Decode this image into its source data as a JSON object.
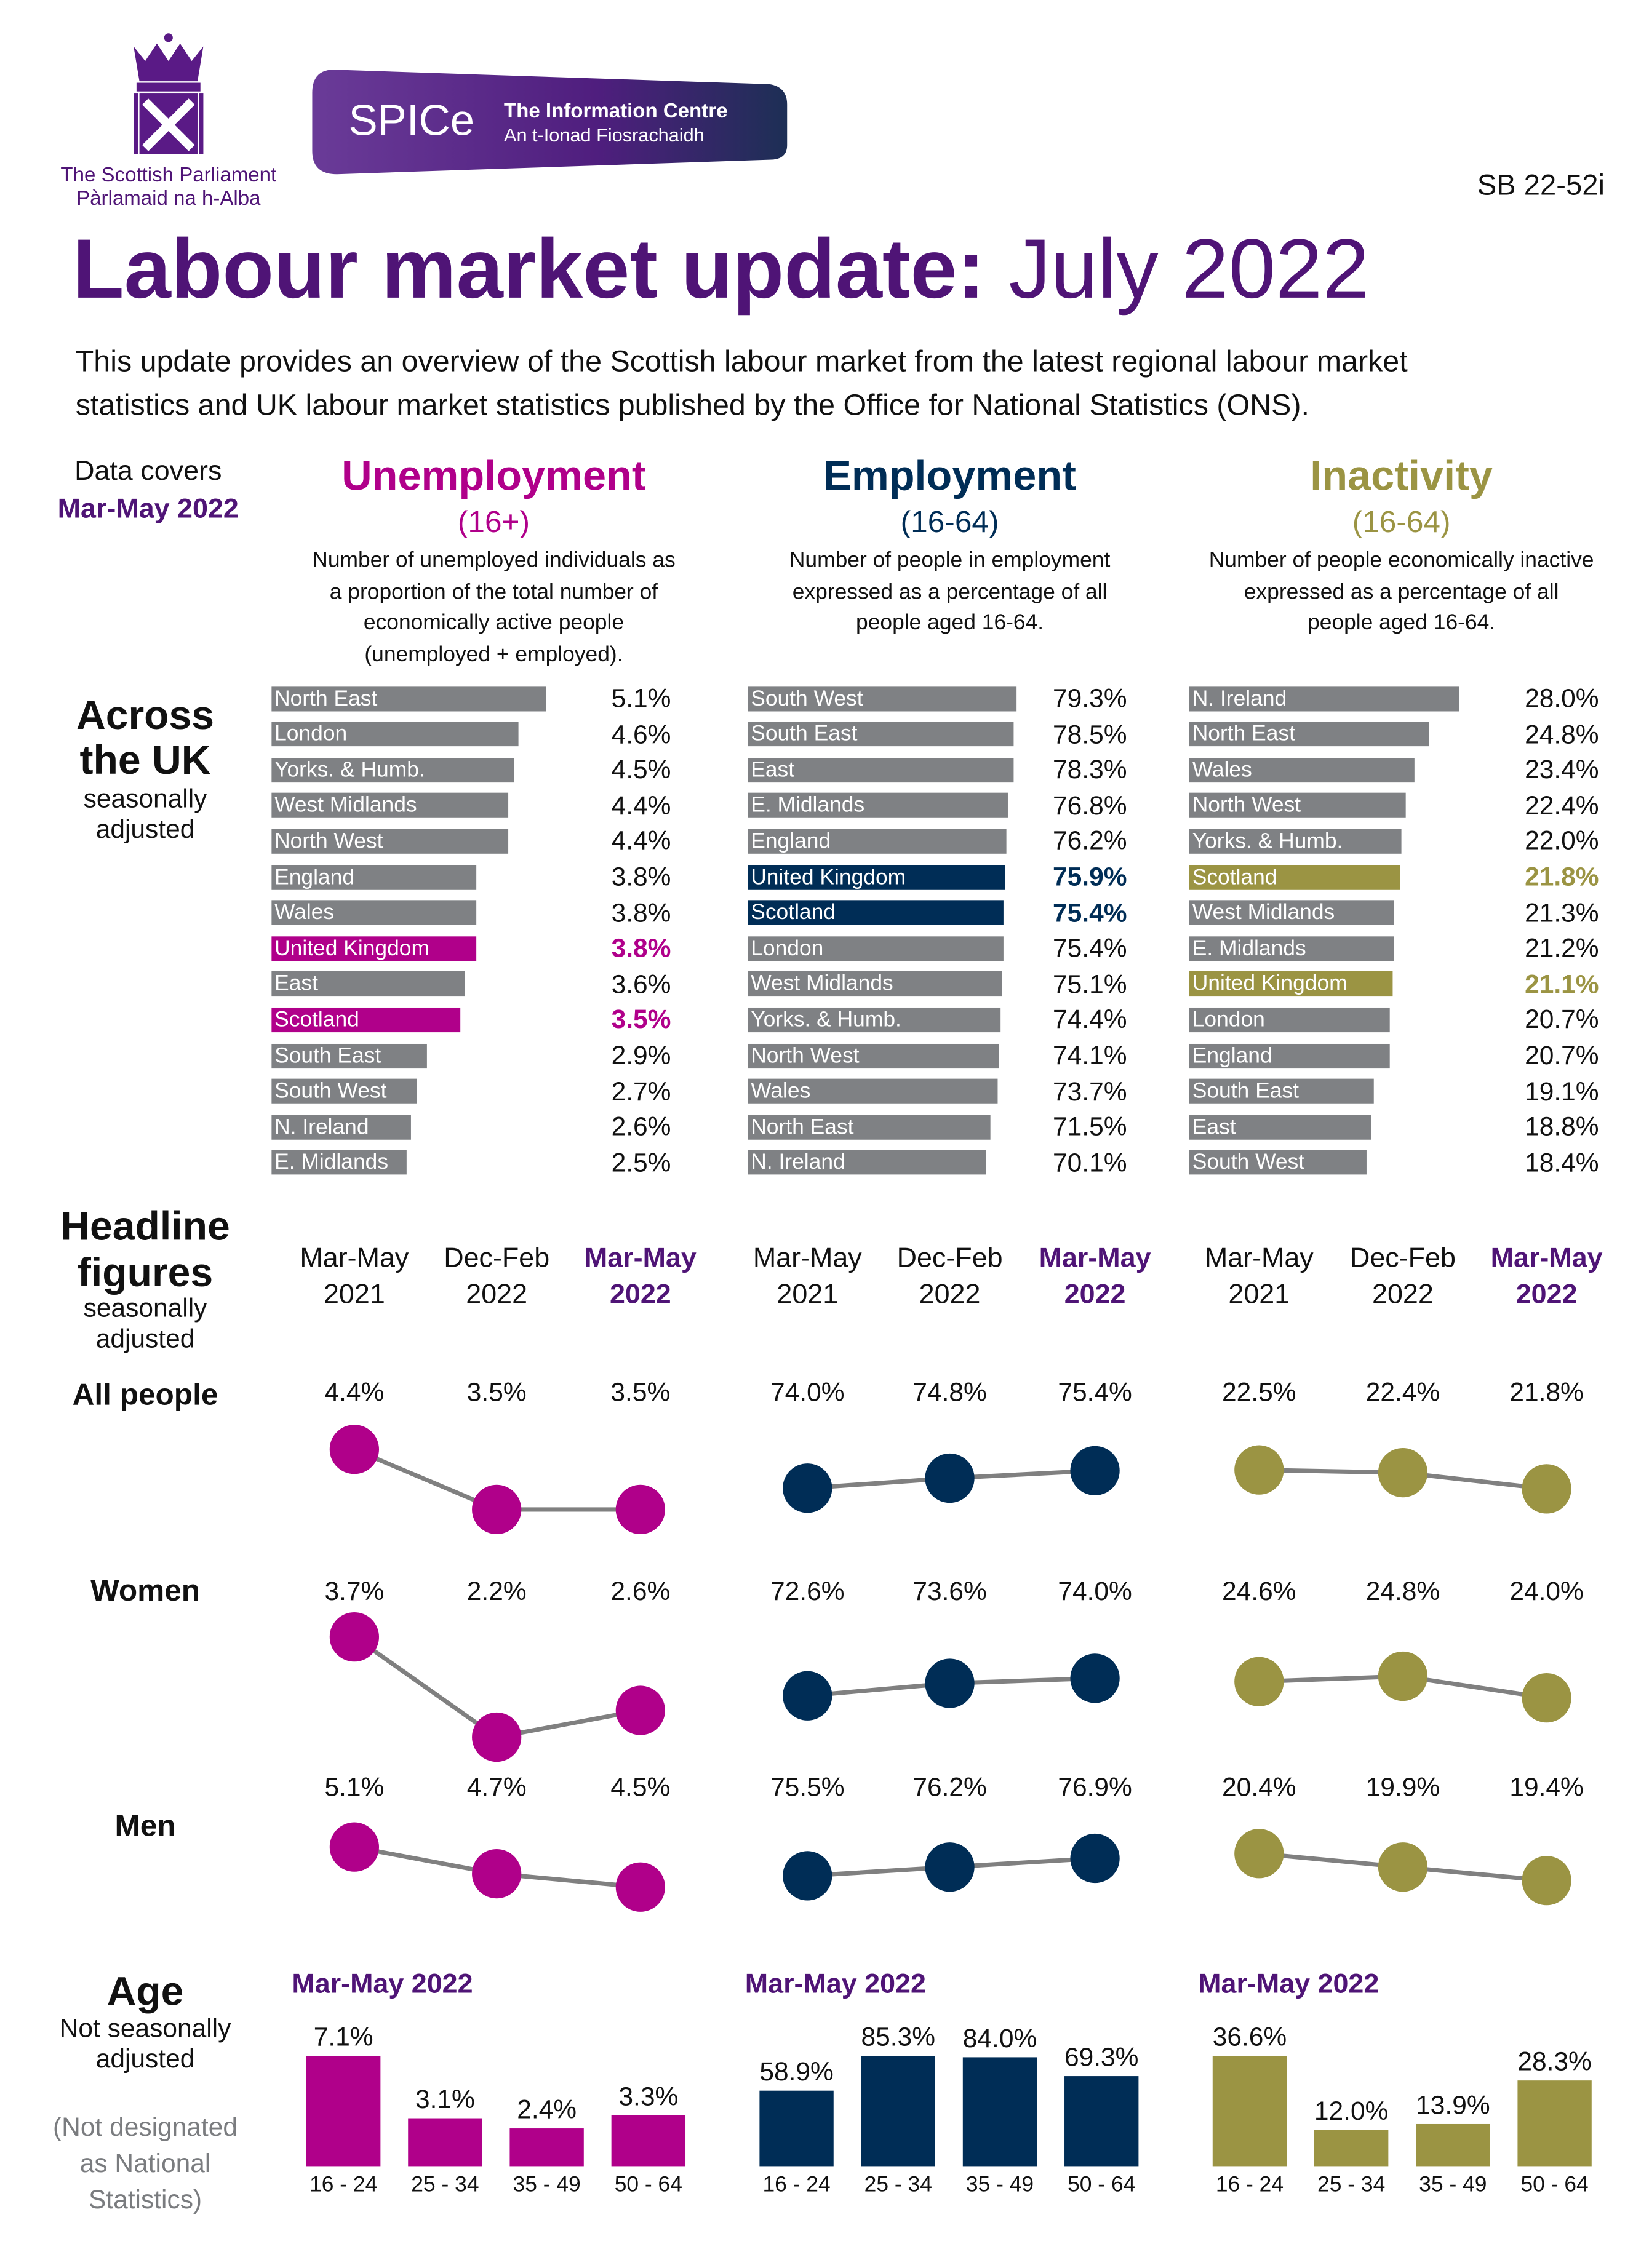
{
  "header": {
    "parliament_name_en": "The Scottish Parliament",
    "parliament_name_gd": "Pàrlamaid na h-Alba",
    "spice_logo": "SPICe",
    "spice_subtitle_en": "The Information Centre",
    "spice_subtitle_gd": "An t-Ionad Fiosrachaidh",
    "reference": "SB 22-52i",
    "title_bold": "Labour market update:",
    "title_regular": "July 2022",
    "intro_line1": "This update provides an overview of the Scottish labour market from the latest regional labour market",
    "intro_line2": "statistics and UK labour market statistics published by the Office for National Statistics (ONS)."
  },
  "data_covers": {
    "label": "Data covers",
    "period": "Mar-May 2022"
  },
  "sections": {
    "across_uk": {
      "title_line1": "Across",
      "title_line2": "the UK",
      "note_line1": "seasonally",
      "note_line2": "adjusted"
    },
    "headline": {
      "title_line1": "Headline",
      "title_line2": "figures",
      "note_line1": "seasonally",
      "note_line2": "adjusted",
      "row_labels": [
        "All people",
        "Women",
        "Men"
      ],
      "periods": [
        {
          "line1": "Mar-May",
          "line2": "2021"
        },
        {
          "line1": "Dec-Feb",
          "line2": "2022"
        },
        {
          "line1": "Mar-May",
          "line2": "2022"
        }
      ]
    },
    "age": {
      "title": "Age",
      "note_line1": "Not seasonally",
      "note_line2": "adjusted",
      "caveat_line1": "(Not designated",
      "caveat_line2": "as National",
      "caveat_line3": "Statistics)"
    }
  },
  "colors": {
    "unemployment": "#b0008a",
    "employment": "#002d56",
    "inactivity": "#9b9443",
    "neutral_bar": "#7f8184",
    "title_purple": "#4f1476",
    "connector": "#808080"
  },
  "measures": [
    {
      "key": "unemployment",
      "title": "Unemployment",
      "age_range": "(16+)",
      "description": [
        "Number of unemployed individuals as",
        "a proportion of the total number of",
        "economically active people",
        "(unemployed + employed)."
      ],
      "regions": [
        {
          "name": "North East",
          "value": "5.1%"
        },
        {
          "name": "London",
          "value": "4.6%"
        },
        {
          "name": "Yorks. & Humb.",
          "value": "4.5%"
        },
        {
          "name": "West Midlands",
          "value": "4.4%"
        },
        {
          "name": "North West",
          "value": "4.4%"
        },
        {
          "name": "England",
          "value": "3.8%"
        },
        {
          "name": "Wales",
          "value": "3.8%"
        },
        {
          "name": "United Kingdom",
          "value": "3.8%",
          "highlight": true
        },
        {
          "name": "East",
          "value": "3.6%"
        },
        {
          "name": "Scotland",
          "value": "3.5%",
          "highlight": true
        },
        {
          "name": "South East",
          "value": "2.9%"
        },
        {
          "name": "South West",
          "value": "2.7%"
        },
        {
          "name": "N. Ireland",
          "value": "2.6%"
        },
        {
          "name": "E. Midlands",
          "value": "2.5%"
        }
      ],
      "headline": {
        "all_people": [
          "4.4%",
          "3.5%",
          "3.5%"
        ],
        "women": [
          "3.7%",
          "2.2%",
          "2.6%"
        ],
        "men": [
          "5.1%",
          "4.7%",
          "4.5%"
        ]
      },
      "age": {
        "period": "Mar-May 2022",
        "groups": [
          "16 - 24",
          "25 - 34",
          "35 - 49",
          "50 - 64"
        ],
        "values": [
          "7.1%",
          "3.1%",
          "2.4%",
          "3.3%"
        ]
      }
    },
    {
      "key": "employment",
      "title": "Employment",
      "age_range": "(16-64)",
      "description": [
        "Number of people in employment",
        "expressed as a percentage of all",
        "people aged 16-64."
      ],
      "regions": [
        {
          "name": "South West",
          "value": "79.3%"
        },
        {
          "name": "South East",
          "value": "78.5%"
        },
        {
          "name": "East",
          "value": "78.3%"
        },
        {
          "name": "E. Midlands",
          "value": "76.8%"
        },
        {
          "name": "England",
          "value": "76.2%"
        },
        {
          "name": "United Kingdom",
          "value": "75.9%",
          "highlight": true
        },
        {
          "name": "Scotland",
          "value": "75.4%",
          "highlight": true
        },
        {
          "name": "London",
          "value": "75.4%"
        },
        {
          "name": "West Midlands",
          "value": "75.1%"
        },
        {
          "name": "Yorks. & Humb.",
          "value": "74.4%"
        },
        {
          "name": "North West",
          "value": "74.1%"
        },
        {
          "name": "Wales",
          "value": "73.7%"
        },
        {
          "name": "North East",
          "value": "71.5%"
        },
        {
          "name": "N. Ireland",
          "value": "70.1%"
        }
      ],
      "headline": {
        "all_people": [
          "74.0%",
          "74.8%",
          "75.4%"
        ],
        "women": [
          "72.6%",
          "73.6%",
          "74.0%"
        ],
        "men": [
          "75.5%",
          "76.2%",
          "76.9%"
        ]
      },
      "age": {
        "period": "Mar-May 2022",
        "groups": [
          "16 - 24",
          "25 - 34",
          "35 - 49",
          "50 - 64"
        ],
        "values": [
          "58.9%",
          "85.3%",
          "84.0%",
          "69.3%"
        ]
      }
    },
    {
      "key": "inactivity",
      "title": "Inactivity",
      "age_range": "(16-64)",
      "description": [
        "Number of people economically inactive",
        "expressed as a percentage of all",
        "people aged 16-64."
      ],
      "regions": [
        {
          "name": "N. Ireland",
          "value": "28.0%"
        },
        {
          "name": "North East",
          "value": "24.8%"
        },
        {
          "name": "Wales",
          "value": "23.4%"
        },
        {
          "name": "North West",
          "value": "22.4%"
        },
        {
          "name": "Yorks. & Humb.",
          "value": "22.0%"
        },
        {
          "name": "Scotland",
          "value": "21.8%",
          "highlight": true
        },
        {
          "name": "West Midlands",
          "value": "21.3%"
        },
        {
          "name": "E. Midlands",
          "value": "21.2%"
        },
        {
          "name": "United Kingdom",
          "value": "21.1%",
          "highlight": true
        },
        {
          "name": "London",
          "value": "20.7%"
        },
        {
          "name": "England",
          "value": "20.7%"
        },
        {
          "name": "South East",
          "value": "19.1%"
        },
        {
          "name": "East",
          "value": "18.8%"
        },
        {
          "name": "South West",
          "value": "18.4%"
        }
      ],
      "headline": {
        "all_people": [
          "22.5%",
          "22.4%",
          "21.8%"
        ],
        "women": [
          "24.6%",
          "24.8%",
          "24.0%"
        ],
        "men": [
          "20.4%",
          "19.9%",
          "19.4%"
        ]
      },
      "age": {
        "period": "Mar-May 2022",
        "groups": [
          "16 - 24",
          "25 - 34",
          "35 - 49",
          "50 - 64"
        ],
        "values": [
          "36.6%",
          "12.0%",
          "13.9%",
          "28.3%"
        ]
      }
    }
  ]
}
